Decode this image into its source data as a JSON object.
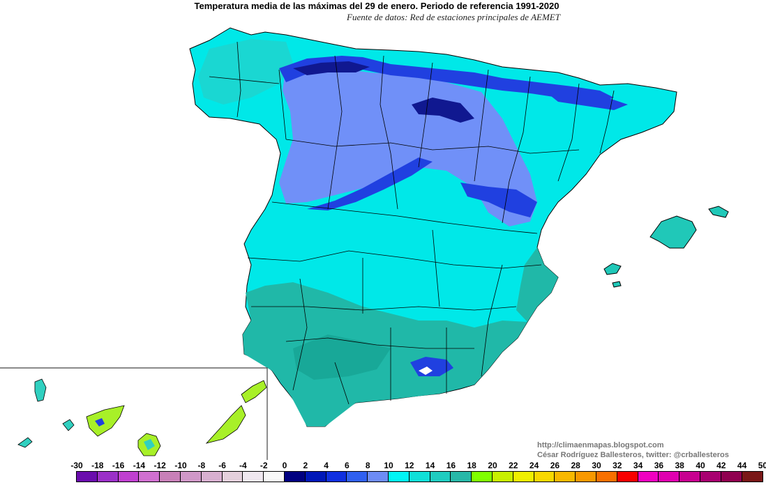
{
  "header": {
    "title": "Temperatura media de las máximas del 29 de enero. Periodo de referencia 1991-2020",
    "subtitle": "Fuente de datos: Red de estaciones principales de AEMET"
  },
  "credits": {
    "blog": "http://climaenmapas.blogspot.com",
    "author": "César Rodríguez Ballesteros, twitter: @crballesteros"
  },
  "legend": {
    "labels": [
      "-30",
      "-18",
      "-16",
      "-14",
      "-12",
      "-10",
      "-8",
      "-6",
      "-4",
      "-2",
      "0",
      "2",
      "4",
      "6",
      "8",
      "10",
      "12",
      "14",
      "16",
      "18",
      "20",
      "22",
      "24",
      "26",
      "28",
      "30",
      "32",
      "34",
      "36",
      "38",
      "40",
      "42",
      "44",
      "50"
    ],
    "colors": [
      "#6a0dad",
      "#9b30c8",
      "#c040d0",
      "#d070d0",
      "#c880b8",
      "#d098c8",
      "#d8b0d0",
      "#e4d0dc",
      "#f0e8f0",
      "#f8f8f8",
      "#000080",
      "#0018b8",
      "#1030e0",
      "#3060f0",
      "#6e8cf5",
      "#00f5f5",
      "#10e0d8",
      "#20ccc0",
      "#28b8a8",
      "#80ff00",
      "#c8f000",
      "#f0f000",
      "#f8d800",
      "#f8b800",
      "#f89800",
      "#f87000",
      "#f80000",
      "#f000c0",
      "#e000b0",
      "#c80090",
      "#a80070",
      "#900050",
      "#7a1818"
    ]
  },
  "map": {
    "colors": {
      "base": "#00e8e8",
      "north": "#30c8c0",
      "south": "#20b8a8",
      "cold": "#7090f8",
      "mountain": "#2040e0",
      "peak": "#101890",
      "canary_warm": "#a8f028",
      "canary_mid": "#30d0c0"
    }
  }
}
